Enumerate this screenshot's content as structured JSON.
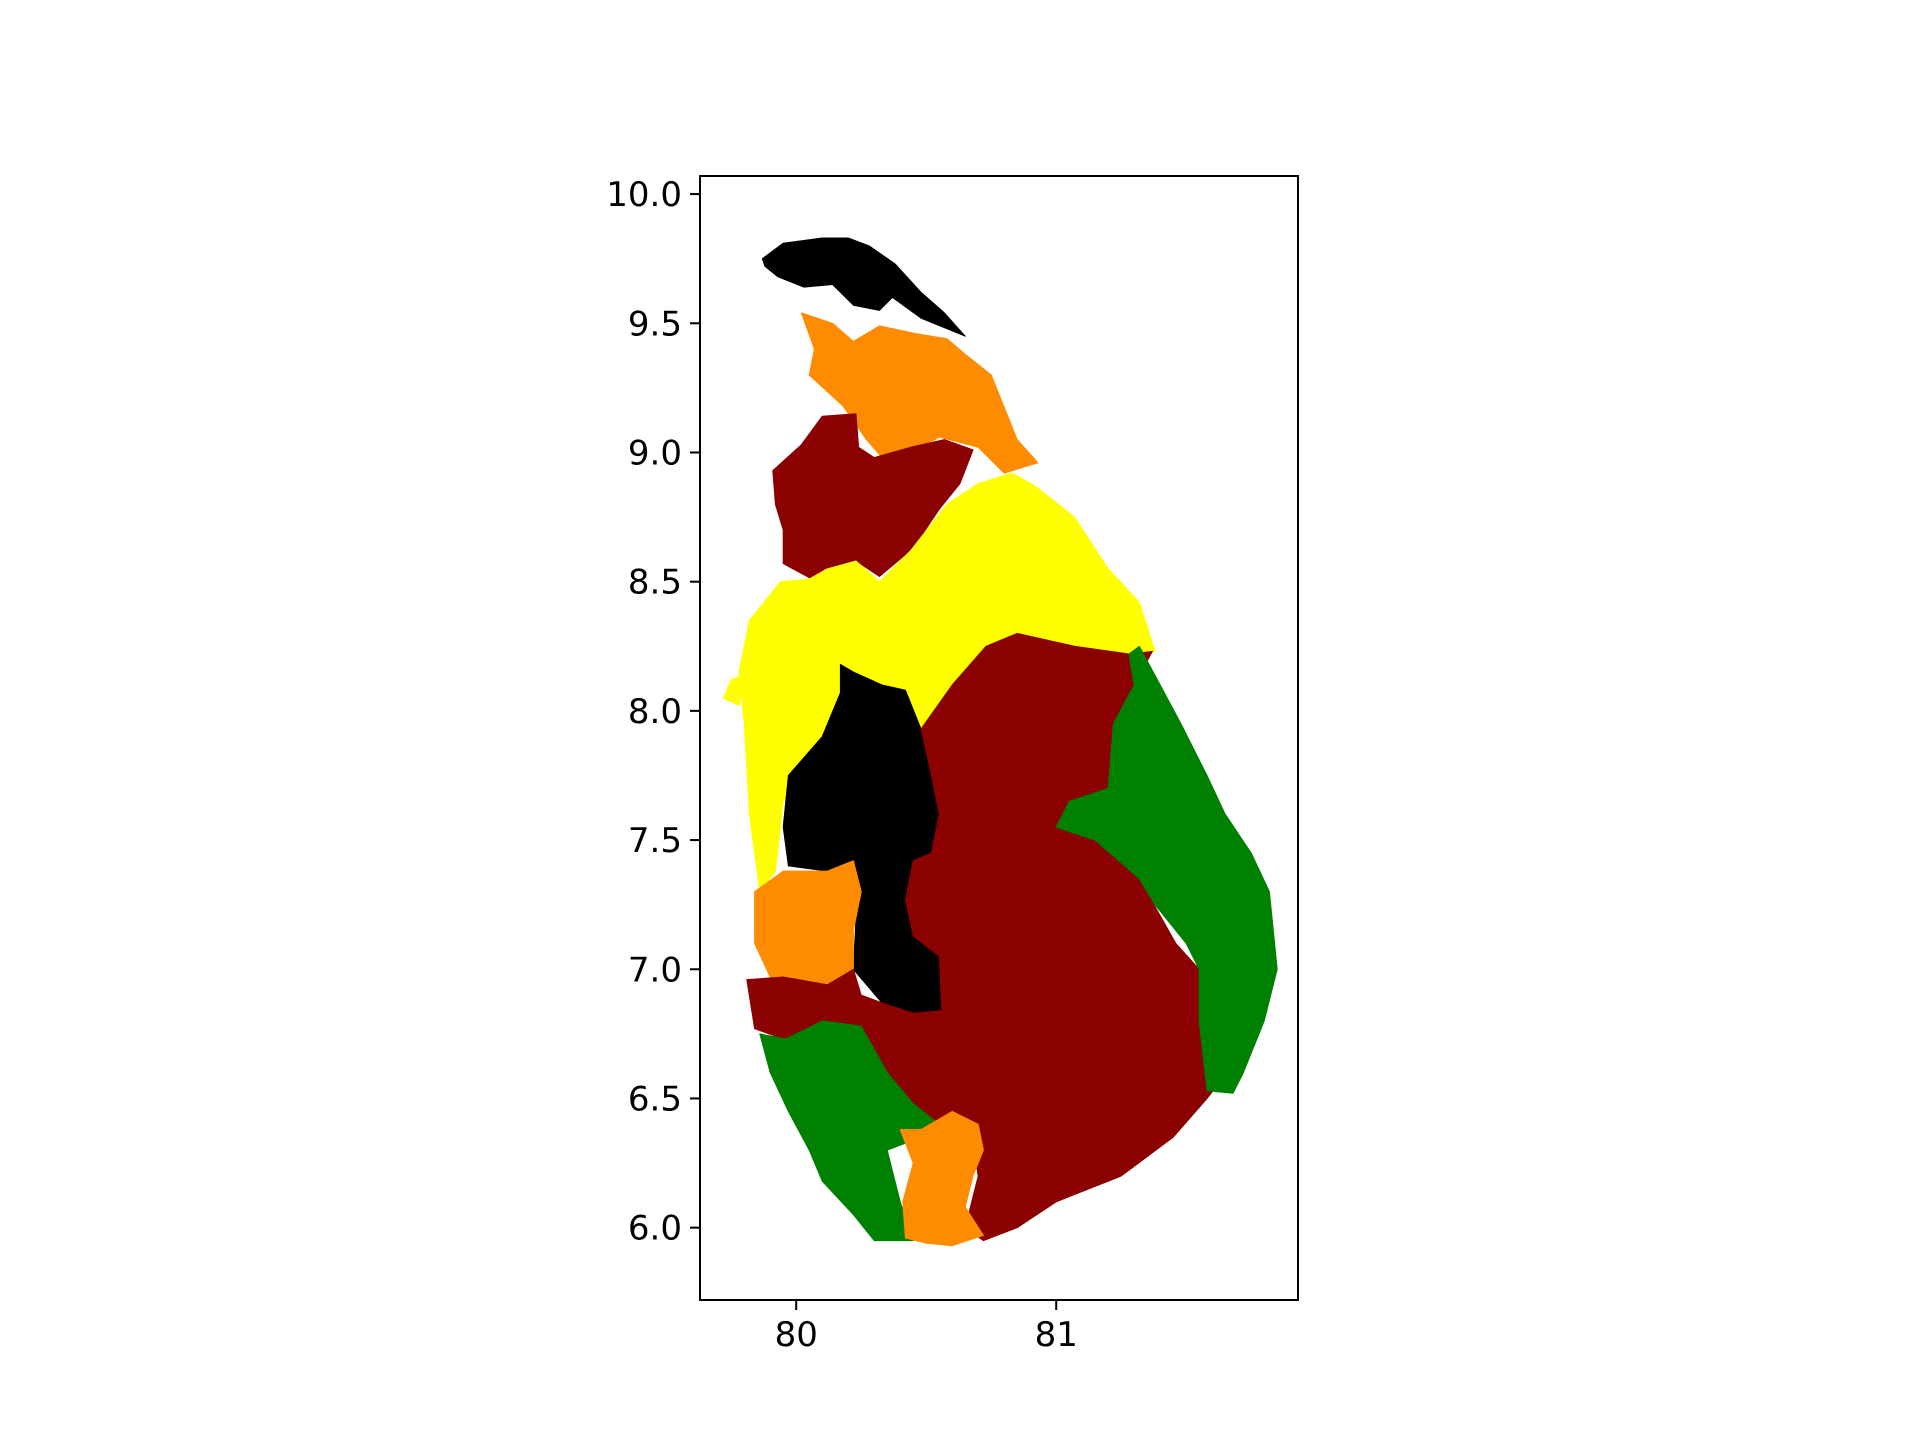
{
  "chart_data": {
    "type": "choropleth",
    "x_ticks": [
      80,
      81
    ],
    "y_ticks": [
      6.0,
      6.5,
      7.0,
      7.5,
      8.0,
      8.5,
      9.0,
      9.5,
      10.0
    ],
    "x_tick_labels": [
      "80",
      "81"
    ],
    "y_tick_labels": [
      "6.0",
      "6.5",
      "7.0",
      "7.5",
      "8.0",
      "8.5",
      "9.0",
      "9.5",
      "10.0"
    ],
    "xlim": [
      79.63,
      81.93
    ],
    "ylim": [
      5.72,
      10.07
    ],
    "grid": false,
    "colors": {
      "black": "#000000",
      "dark_red": "#8b0000",
      "orange": "#ff8c00",
      "yellow": "#ffff00",
      "green": "#008000"
    },
    "regions": [
      {
        "color": "black",
        "shape": [
          [
            79.87,
            9.75
          ],
          [
            79.95,
            9.81
          ],
          [
            80.1,
            9.83
          ],
          [
            80.2,
            9.83
          ],
          [
            80.28,
            9.8
          ],
          [
            80.38,
            9.73
          ],
          [
            80.48,
            9.62
          ],
          [
            80.57,
            9.54
          ],
          [
            80.65,
            9.45
          ],
          [
            80.48,
            9.52
          ],
          [
            80.37,
            9.6
          ],
          [
            80.32,
            9.55
          ],
          [
            80.22,
            9.57
          ],
          [
            80.14,
            9.65
          ],
          [
            80.03,
            9.64
          ],
          [
            79.93,
            9.68
          ],
          [
            79.88,
            9.72
          ]
        ]
      },
      {
        "color": "orange",
        "shape": [
          [
            80.02,
            9.54
          ],
          [
            80.14,
            9.5
          ],
          [
            80.22,
            9.43
          ],
          [
            80.32,
            9.49
          ],
          [
            80.46,
            9.46
          ],
          [
            80.58,
            9.44
          ],
          [
            80.65,
            9.38
          ],
          [
            80.75,
            9.3
          ],
          [
            80.85,
            9.05
          ],
          [
            80.93,
            8.96
          ],
          [
            80.8,
            8.92
          ],
          [
            80.7,
            9.02
          ],
          [
            80.55,
            9.06
          ],
          [
            80.45,
            9.0
          ],
          [
            80.33,
            8.98
          ],
          [
            80.27,
            9.05
          ],
          [
            80.18,
            9.18
          ],
          [
            80.05,
            9.3
          ],
          [
            80.07,
            9.4
          ]
        ]
      },
      {
        "color": "dark_red",
        "shape": [
          [
            79.91,
            8.93
          ],
          [
            80.02,
            9.03
          ],
          [
            80.1,
            9.14
          ],
          [
            80.23,
            9.15
          ],
          [
            80.24,
            9.02
          ],
          [
            80.3,
            8.98
          ],
          [
            80.44,
            9.02
          ],
          [
            80.57,
            9.05
          ],
          [
            80.68,
            9.01
          ],
          [
            80.63,
            8.88
          ],
          [
            80.55,
            8.78
          ],
          [
            80.45,
            8.63
          ],
          [
            80.32,
            8.52
          ],
          [
            80.23,
            8.58
          ],
          [
            80.11,
            8.55
          ],
          [
            80.06,
            8.51
          ],
          [
            79.95,
            8.57
          ],
          [
            79.95,
            8.7
          ],
          [
            79.92,
            8.8
          ]
        ]
      },
      {
        "color": "yellow",
        "shape": [
          [
            79.94,
            8.5
          ],
          [
            80.05,
            8.51
          ],
          [
            80.12,
            8.55
          ],
          [
            80.23,
            8.58
          ],
          [
            80.32,
            8.5
          ],
          [
            80.44,
            8.62
          ],
          [
            80.58,
            8.8
          ],
          [
            80.7,
            8.88
          ],
          [
            80.83,
            8.92
          ],
          [
            80.92,
            8.87
          ],
          [
            81.07,
            8.75
          ],
          [
            81.2,
            8.55
          ],
          [
            81.32,
            8.42
          ],
          [
            81.38,
            8.23
          ],
          [
            81.28,
            8.22
          ],
          [
            81.07,
            8.25
          ],
          [
            80.85,
            8.3
          ],
          [
            80.73,
            8.25
          ],
          [
            80.6,
            8.1
          ],
          [
            80.52,
            7.95
          ],
          [
            80.44,
            7.85
          ],
          [
            80.35,
            7.95
          ],
          [
            80.28,
            8.01
          ],
          [
            80.2,
            8.14
          ],
          [
            80.17,
            8.07
          ],
          [
            80.1,
            7.85
          ],
          [
            79.95,
            7.65
          ],
          [
            79.92,
            7.38
          ],
          [
            79.86,
            7.3
          ],
          [
            79.82,
            7.6
          ],
          [
            79.8,
            7.95
          ],
          [
            79.78,
            8.15
          ],
          [
            79.82,
            8.35
          ],
          [
            79.9,
            8.45
          ]
        ]
      },
      {
        "color": "black",
        "shape": [
          [
            80.17,
            8.18
          ],
          [
            80.22,
            8.15
          ],
          [
            80.33,
            8.1
          ],
          [
            80.42,
            8.08
          ],
          [
            80.48,
            7.93
          ],
          [
            80.52,
            7.75
          ],
          [
            80.55,
            7.6
          ],
          [
            80.52,
            7.45
          ],
          [
            80.45,
            7.42
          ],
          [
            80.42,
            7.27
          ],
          [
            80.45,
            7.13
          ],
          [
            80.55,
            7.05
          ],
          [
            80.56,
            6.84
          ],
          [
            80.45,
            6.83
          ],
          [
            80.33,
            6.87
          ],
          [
            80.22,
            7.0
          ],
          [
            80.23,
            7.2
          ],
          [
            80.22,
            7.42
          ],
          [
            80.12,
            7.38
          ],
          [
            79.97,
            7.4
          ],
          [
            79.95,
            7.55
          ],
          [
            79.97,
            7.75
          ],
          [
            80.1,
            7.9
          ],
          [
            80.17,
            8.07
          ]
        ]
      },
      {
        "color": "orange",
        "shape": [
          [
            79.84,
            7.3
          ],
          [
            79.95,
            7.38
          ],
          [
            80.12,
            7.38
          ],
          [
            80.22,
            7.42
          ],
          [
            80.25,
            7.3
          ],
          [
            80.22,
            7.15
          ],
          [
            80.22,
            7.0
          ],
          [
            80.12,
            6.94
          ],
          [
            79.9,
            6.97
          ],
          [
            79.84,
            7.1
          ]
        ]
      },
      {
        "color": "dark_red",
        "shape": [
          [
            79.81,
            6.96
          ],
          [
            79.95,
            6.97
          ],
          [
            80.12,
            6.94
          ],
          [
            80.22,
            7.0
          ],
          [
            80.25,
            6.9
          ],
          [
            80.33,
            6.87
          ],
          [
            80.45,
            6.83
          ],
          [
            80.56,
            6.84
          ],
          [
            80.55,
            7.05
          ],
          [
            80.45,
            7.13
          ],
          [
            80.42,
            7.27
          ],
          [
            80.45,
            7.42
          ],
          [
            80.52,
            7.45
          ],
          [
            80.55,
            7.6
          ],
          [
            80.52,
            7.75
          ],
          [
            80.48,
            7.93
          ],
          [
            80.6,
            8.1
          ],
          [
            80.73,
            8.25
          ],
          [
            80.85,
            8.3
          ],
          [
            81.07,
            8.25
          ],
          [
            81.28,
            8.22
          ],
          [
            81.37,
            8.23
          ],
          [
            81.3,
            8.1
          ],
          [
            81.22,
            7.95
          ],
          [
            81.2,
            7.7
          ],
          [
            81.05,
            7.65
          ],
          [
            81.0,
            7.55
          ],
          [
            81.15,
            7.5
          ],
          [
            81.32,
            7.35
          ],
          [
            81.46,
            7.1
          ],
          [
            81.55,
            7.0
          ],
          [
            81.55,
            6.8
          ],
          [
            81.62,
            6.55
          ],
          [
            81.58,
            6.5
          ],
          [
            81.45,
            6.35
          ],
          [
            81.25,
            6.2
          ],
          [
            81.0,
            6.1
          ],
          [
            80.85,
            6.0
          ],
          [
            80.72,
            5.95
          ],
          [
            80.65,
            6.0
          ],
          [
            80.7,
            6.2
          ],
          [
            80.67,
            6.4
          ],
          [
            80.56,
            6.38
          ],
          [
            80.45,
            6.48
          ],
          [
            80.35,
            6.6
          ],
          [
            80.25,
            6.78
          ],
          [
            80.1,
            6.8
          ],
          [
            79.95,
            6.73
          ],
          [
            79.84,
            6.77
          ]
        ]
      },
      {
        "color": "green",
        "shape": [
          [
            79.86,
            6.75
          ],
          [
            79.96,
            6.73
          ],
          [
            80.1,
            6.8
          ],
          [
            80.25,
            6.78
          ],
          [
            80.35,
            6.6
          ],
          [
            80.45,
            6.48
          ],
          [
            80.55,
            6.4
          ],
          [
            80.48,
            6.35
          ],
          [
            80.35,
            6.3
          ],
          [
            80.4,
            6.1
          ],
          [
            80.45,
            5.95
          ],
          [
            80.3,
            5.95
          ],
          [
            80.22,
            6.05
          ],
          [
            80.1,
            6.18
          ],
          [
            80.05,
            6.3
          ],
          [
            79.97,
            6.45
          ],
          [
            79.9,
            6.6
          ]
        ]
      },
      {
        "color": "orange",
        "shape": [
          [
            80.4,
            6.38
          ],
          [
            80.48,
            6.38
          ],
          [
            80.55,
            6.42
          ],
          [
            80.6,
            6.45
          ],
          [
            80.7,
            6.4
          ],
          [
            80.72,
            6.3
          ],
          [
            80.68,
            6.2
          ],
          [
            80.65,
            6.08
          ],
          [
            80.72,
            5.97
          ],
          [
            80.6,
            5.93
          ],
          [
            80.5,
            5.94
          ],
          [
            80.42,
            5.96
          ],
          [
            80.41,
            6.1
          ],
          [
            80.45,
            6.25
          ]
        ]
      },
      {
        "color": "green",
        "shape": [
          [
            81.28,
            8.22
          ],
          [
            81.32,
            8.25
          ],
          [
            81.4,
            8.1
          ],
          [
            81.48,
            7.95
          ],
          [
            81.58,
            7.75
          ],
          [
            81.65,
            7.6
          ],
          [
            81.75,
            7.45
          ],
          [
            81.82,
            7.3
          ],
          [
            81.85,
            7.0
          ],
          [
            81.8,
            6.8
          ],
          [
            81.72,
            6.6
          ],
          [
            81.68,
            6.52
          ],
          [
            81.58,
            6.53
          ],
          [
            81.55,
            6.8
          ],
          [
            81.55,
            7.0
          ],
          [
            81.5,
            7.1
          ],
          [
            81.38,
            7.25
          ],
          [
            81.32,
            7.35
          ],
          [
            81.15,
            7.5
          ],
          [
            81.0,
            7.55
          ],
          [
            81.05,
            7.65
          ],
          [
            81.2,
            7.7
          ],
          [
            81.22,
            7.95
          ],
          [
            81.3,
            8.1
          ]
        ]
      }
    ],
    "islands": [
      {
        "color": "black",
        "points": [
          [
            80.15,
            9.64
          ],
          [
            80.2,
            9.62
          ],
          [
            80.26,
            9.67
          ],
          [
            80.2,
            9.69
          ]
        ]
      },
      {
        "color": "yellow",
        "points": [
          [
            79.72,
            8.05
          ],
          [
            79.78,
            8.02
          ],
          [
            79.8,
            8.14
          ],
          [
            79.75,
            8.12
          ]
        ]
      }
    ]
  }
}
